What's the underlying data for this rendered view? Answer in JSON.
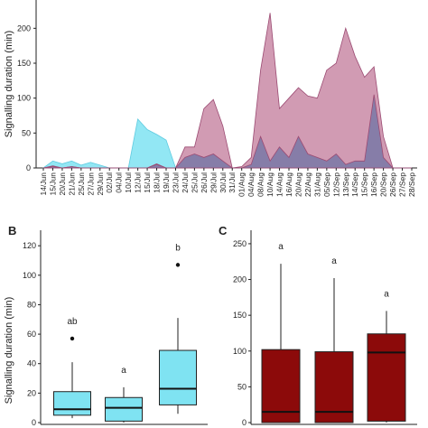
{
  "colors": {
    "cyan": "#7fe3f2",
    "cyan_stroke": "#5fcbe0",
    "pink": "#c98aa6",
    "pink_stroke": "#9b4a72",
    "overlap": "#7d7aa6",
    "dark_red": "#8c0a0a",
    "axis": "#222222"
  },
  "chart_data": [
    {
      "panel": "A",
      "type": "area",
      "ylabel": "Signalling duration (min)",
      "ylim": [
        0,
        225
      ],
      "yticks": [
        "0",
        "50",
        "100",
        "150",
        "200"
      ],
      "ytick_values": [
        0,
        50,
        100,
        150,
        200
      ],
      "categories": [
        "14/Jun",
        "15/Jun",
        "20/Jun",
        "21/Jun",
        "25/Jun",
        "27/Jun",
        "29/Jun",
        "02/Jul",
        "04/Jul",
        "10/Jul",
        "12/Jul",
        "15/Jul",
        "18/Jul",
        "19/Jul",
        "23/Jul",
        "24/Jul",
        "25/Jul",
        "26/Jul",
        "29/Jul",
        "30/Jul",
        "31/Jul",
        "01/Aug",
        "04/Aug",
        "08/Aug",
        "10/Aug",
        "14/Aug",
        "16/Aug",
        "20/Aug",
        "22/Aug",
        "31/Aug",
        "05/Sep",
        "12/Sep",
        "13/Sep",
        "14/Sep",
        "15/Sep",
        "16/Sep",
        "20/Sep",
        "26/Sep",
        "27/Sep",
        "28/Sep"
      ],
      "xticks_shown": [
        "14/Jun",
        "15/Jun",
        "20/Jun",
        "21/Jun",
        "25/Jun",
        "27/Jun",
        "29/Jun",
        "02/Jul",
        "04/Jul",
        "10/Jul",
        "12/Jul",
        "15/Jul",
        "18/Jul",
        "19/Jul",
        "23/Jul",
        "24/Jul",
        "25/Jul",
        "26/Jul",
        "29/Jul",
        "30/Jul",
        "31/Jul",
        "01/Aug",
        "04/Aug",
        "08/Aug",
        "10/Aug",
        "14/Aug",
        "16/Aug",
        "20/Aug",
        "22/Aug",
        "31/Aug",
        "05/Sep",
        "12/Sep",
        "13/Sep",
        "14/Sep",
        "15/Sep",
        "16/Sep",
        "20/Sep",
        "26/Sep",
        "27/Sep",
        "28/Sep"
      ],
      "series": [
        {
          "color": "#7fe3f2",
          "values": [
            0,
            10,
            6,
            10,
            4,
            8,
            4,
            0,
            0,
            0,
            70,
            55,
            48,
            40,
            0,
            0,
            0,
            0,
            0,
            0,
            0,
            0,
            0,
            0,
            0,
            0,
            0,
            0,
            0,
            0,
            0,
            0,
            0,
            0,
            0,
            0,
            0,
            0,
            0,
            0
          ]
        },
        {
          "color": "#c98aa6",
          "values": [
            0,
            3,
            0,
            2,
            0,
            0,
            0,
            0,
            0,
            0,
            0,
            0,
            6,
            0,
            0,
            30,
            30,
            85,
            98,
            60,
            0,
            2,
            15,
            140,
            222,
            85,
            100,
            115,
            103,
            100,
            140,
            150,
            200,
            160,
            130,
            145,
            45,
            0,
            0,
            0
          ]
        },
        {
          "color": "#7d7aa6",
          "values": [
            0,
            2,
            0,
            2,
            0,
            0,
            0,
            0,
            0,
            0,
            0,
            0,
            5,
            0,
            0,
            15,
            20,
            15,
            20,
            10,
            0,
            0,
            5,
            45,
            10,
            30,
            15,
            45,
            20,
            15,
            10,
            20,
            5,
            10,
            10,
            105,
            15,
            0,
            0,
            0
          ]
        }
      ]
    },
    {
      "panel": "B",
      "type": "box",
      "ylabel": "Signalling duration (min)",
      "ylim": [
        0,
        125
      ],
      "yticks": [
        "0",
        "20",
        "40",
        "60",
        "80",
        "100",
        "120"
      ],
      "ytick_values": [
        0,
        20,
        40,
        60,
        80,
        100,
        120
      ],
      "boxes": [
        {
          "whisker_low": 3,
          "q1": 5,
          "median": 9,
          "q3": 21,
          "whisker_high": 41,
          "outliers": [
            57
          ],
          "letter": "ab"
        },
        {
          "whisker_low": 0,
          "q1": 1,
          "median": 10,
          "q3": 17,
          "whisker_high": 24,
          "outliers": [],
          "letter": "a"
        },
        {
          "whisker_low": 6,
          "q1": 12,
          "median": 23,
          "q3": 49,
          "whisker_high": 71,
          "outliers": [
            107
          ],
          "letter": "b"
        }
      ]
    },
    {
      "panel": "C",
      "type": "box",
      "ylim": [
        0,
        260
      ],
      "yticks": [
        "0",
        "50",
        "100",
        "150",
        "200",
        "250"
      ],
      "ytick_values": [
        0,
        50,
        100,
        150,
        200,
        250
      ],
      "boxes": [
        {
          "whisker_low": 0,
          "q1": 0,
          "median": 15,
          "q3": 102,
          "whisker_high": 222,
          "outliers": [],
          "letter": "a"
        },
        {
          "whisker_low": 0,
          "q1": 0,
          "median": 15,
          "q3": 99,
          "whisker_high": 202,
          "outliers": [],
          "letter": "a"
        },
        {
          "whisker_low": 0,
          "q1": 2,
          "median": 98,
          "q3": 124,
          "whisker_high": 156,
          "outliers": [],
          "letter": "a"
        }
      ]
    }
  ]
}
